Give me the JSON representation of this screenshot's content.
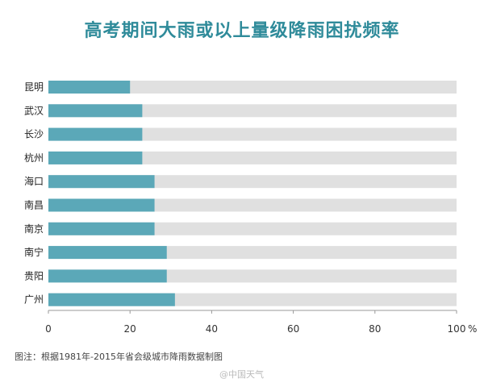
{
  "chart_data": {
    "type": "bar",
    "orientation": "horizontal",
    "title": "高考期间大雨或以上量级降雨困扰频率",
    "categories": [
      "昆明",
      "武汉",
      "长沙",
      "杭州",
      "海口",
      "南昌",
      "南京",
      "南宁",
      "贵阳",
      "广州"
    ],
    "values": [
      20,
      23,
      23,
      23,
      26,
      26,
      26,
      29,
      29,
      31
    ],
    "xlim": [
      0,
      100
    ],
    "ticks": [
      {
        "value": 0,
        "label": "0"
      },
      {
        "value": 20,
        "label": "20"
      },
      {
        "value": 40,
        "label": "40"
      },
      {
        "value": 60,
        "label": "60"
      },
      {
        "value": 80,
        "label": "80"
      },
      {
        "value": 100,
        "label": "100"
      }
    ],
    "unit": "%",
    "grid": false,
    "colors": {
      "bar": "#5ba8b8",
      "track": "#e0e0e0",
      "title": "#2f8b9a"
    }
  },
  "note": "图注：根据1981年-2015年省会级城市降雨数据制图",
  "watermark": "@中国天气"
}
